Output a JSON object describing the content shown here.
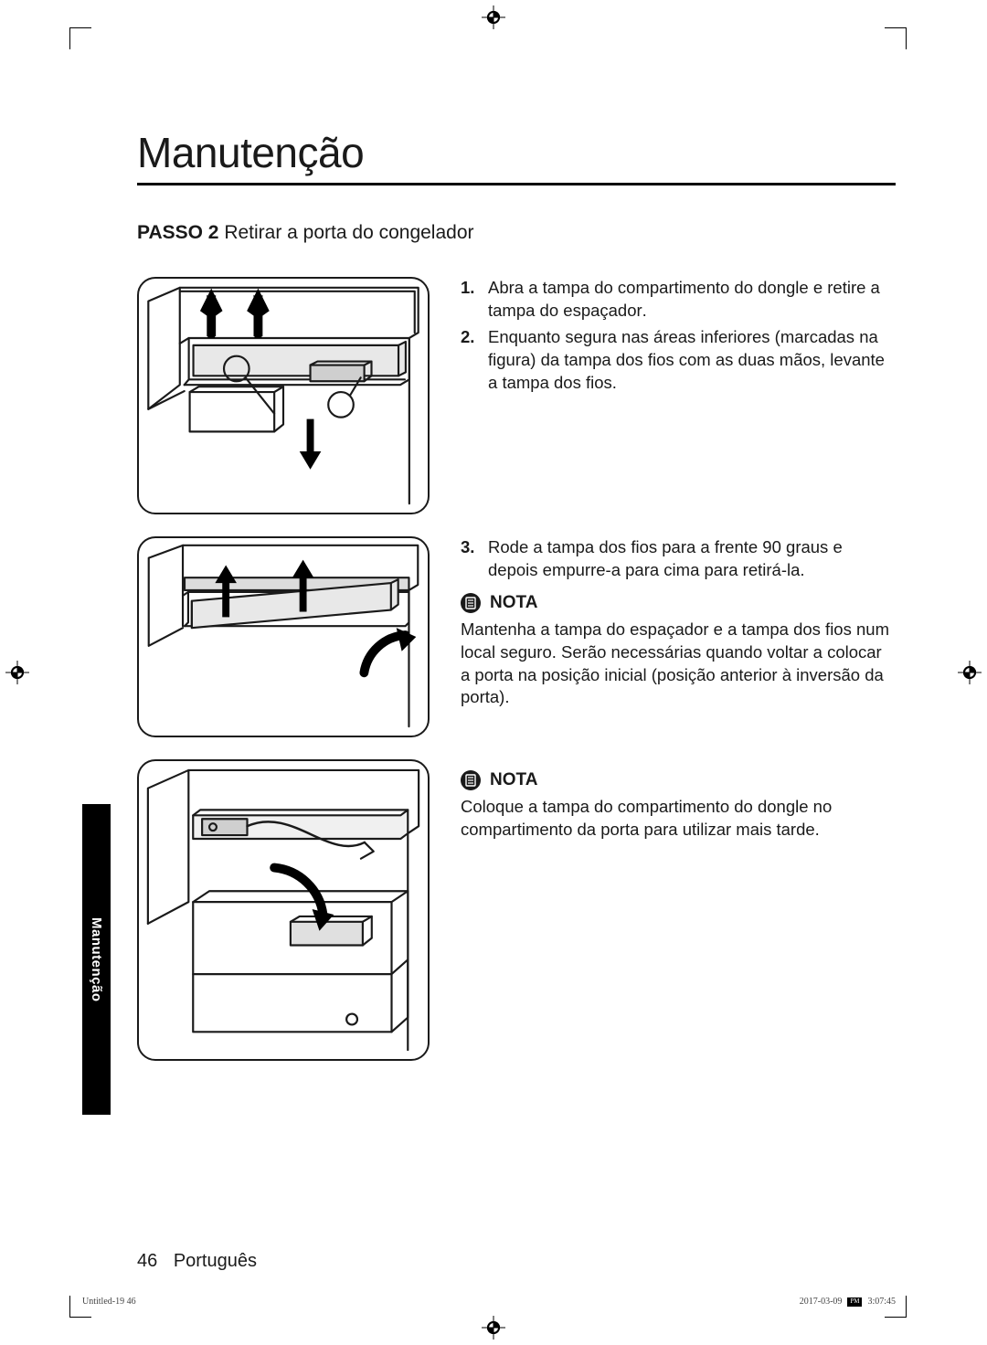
{
  "chapter_title": "Manutenção",
  "side_tab": "Manutenção",
  "step": {
    "label": "PASSO  2",
    "title": "Retirar a porta do congelador"
  },
  "block1": {
    "items": [
      {
        "num": "1.",
        "html": "Abra a <b>tampa do compartimento do dongle</b> e retire a <b>tampa do espaçador</b>."
      },
      {
        "num": "2.",
        "html": "Enquanto segura nas áreas inferiores (marcadas na figura) da <b>tampa dos fios</b> com as duas mãos, levante a <b>tampa dos fios</b>."
      }
    ]
  },
  "block2": {
    "items": [
      {
        "num": "3.",
        "html": "Rode a <b>tampa dos fios</b> para a frente 90 graus e depois empurre-a para cima para retirá-la."
      }
    ],
    "nota_label": "NOTA",
    "nota_text_html": "Mantenha a <b>tampa do espaçador</b> e a <b>tampa dos fios</b> num local seguro. Serão necessárias quando voltar a colocar a porta na posição inicial (posição anterior à inversão da porta)."
  },
  "block3": {
    "nota_label": "NOTA",
    "nota_text_html": "Coloque a <b>tampa do compartimento do dongle</b> no <b>compartimento da porta</b> para utilizar mais tarde."
  },
  "footer": {
    "page_number": "46",
    "language": "Português"
  },
  "slug": {
    "left": "Untitled-19   46",
    "date": "2017-03-09",
    "time": "3:07:45"
  },
  "colors": {
    "text": "#1a1a1a",
    "rule": "#000000",
    "bg": "#ffffff"
  }
}
